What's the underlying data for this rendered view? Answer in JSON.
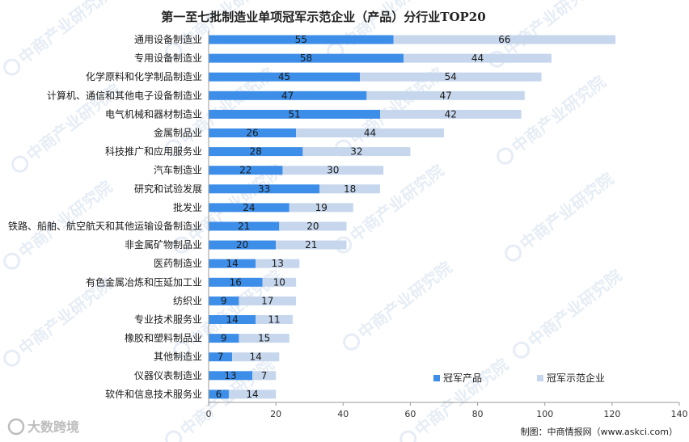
{
  "watermark_text": "中商产业研究院",
  "logo_text": "大数跨境",
  "chart_data": {
    "type": "bar",
    "orientation": "horizontal",
    "stacked": true,
    "title": "第一至七批制造业单项冠军示范企业（产品）分行业TOP20",
    "source": "制图：中商情报网（www.askci.com）",
    "categories": [
      "通用设备制造业",
      "专用设备制造业",
      "化学原料和化学制品制造业",
      "计算机、通信和其他电子设备制造业",
      "电气机械和器材制造业",
      "金属制品业",
      "科技推广和应用服务业",
      "汽车制造业",
      "研究和试验发展",
      "批发业",
      "铁路、船舶、航空航天和其他运输设备制造业",
      "非金属矿物制品业",
      "医药制造业",
      "有色金属冶炼和压延加工业",
      "纺织业",
      "专业技术服务业",
      "橡胶和塑料制品业",
      "其他制造业",
      "仪器仪表制造业",
      "软件和信息技术服务业"
    ],
    "series": [
      {
        "name": "冠军产品",
        "color": "#3d8ee8",
        "values": [
          55,
          58,
          45,
          47,
          51,
          26,
          28,
          22,
          33,
          24,
          21,
          20,
          14,
          16,
          9,
          14,
          9,
          7,
          13,
          6
        ]
      },
      {
        "name": "冠军示范企业",
        "color": "#c6d6ec",
        "values": [
          66,
          44,
          54,
          47,
          42,
          44,
          32,
          30,
          18,
          19,
          20,
          21,
          13,
          10,
          17,
          11,
          15,
          14,
          7,
          14
        ]
      }
    ],
    "xlim": [
      0,
      140
    ],
    "xticks": [
      0,
      20,
      40,
      60,
      80,
      100,
      120,
      140
    ],
    "grid": false,
    "legend_position": "bottom-right"
  }
}
